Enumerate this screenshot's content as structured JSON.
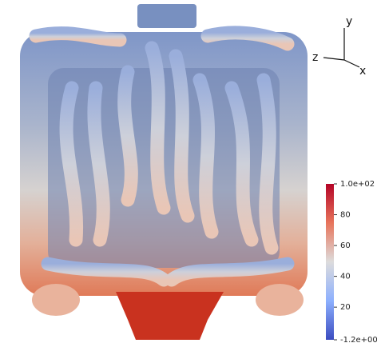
{
  "colorbar": {
    "range": [
      -1.2,
      100
    ],
    "ticks": [
      {
        "value": 100,
        "label": "1.0e+02"
      },
      80,
      60,
      40,
      20,
      {
        "value": -1.2,
        "label": "-1.2e+00"
      }
    ]
  },
  "orientation_axes": {
    "y": "y",
    "z": "z",
    "x": "x"
  }
}
